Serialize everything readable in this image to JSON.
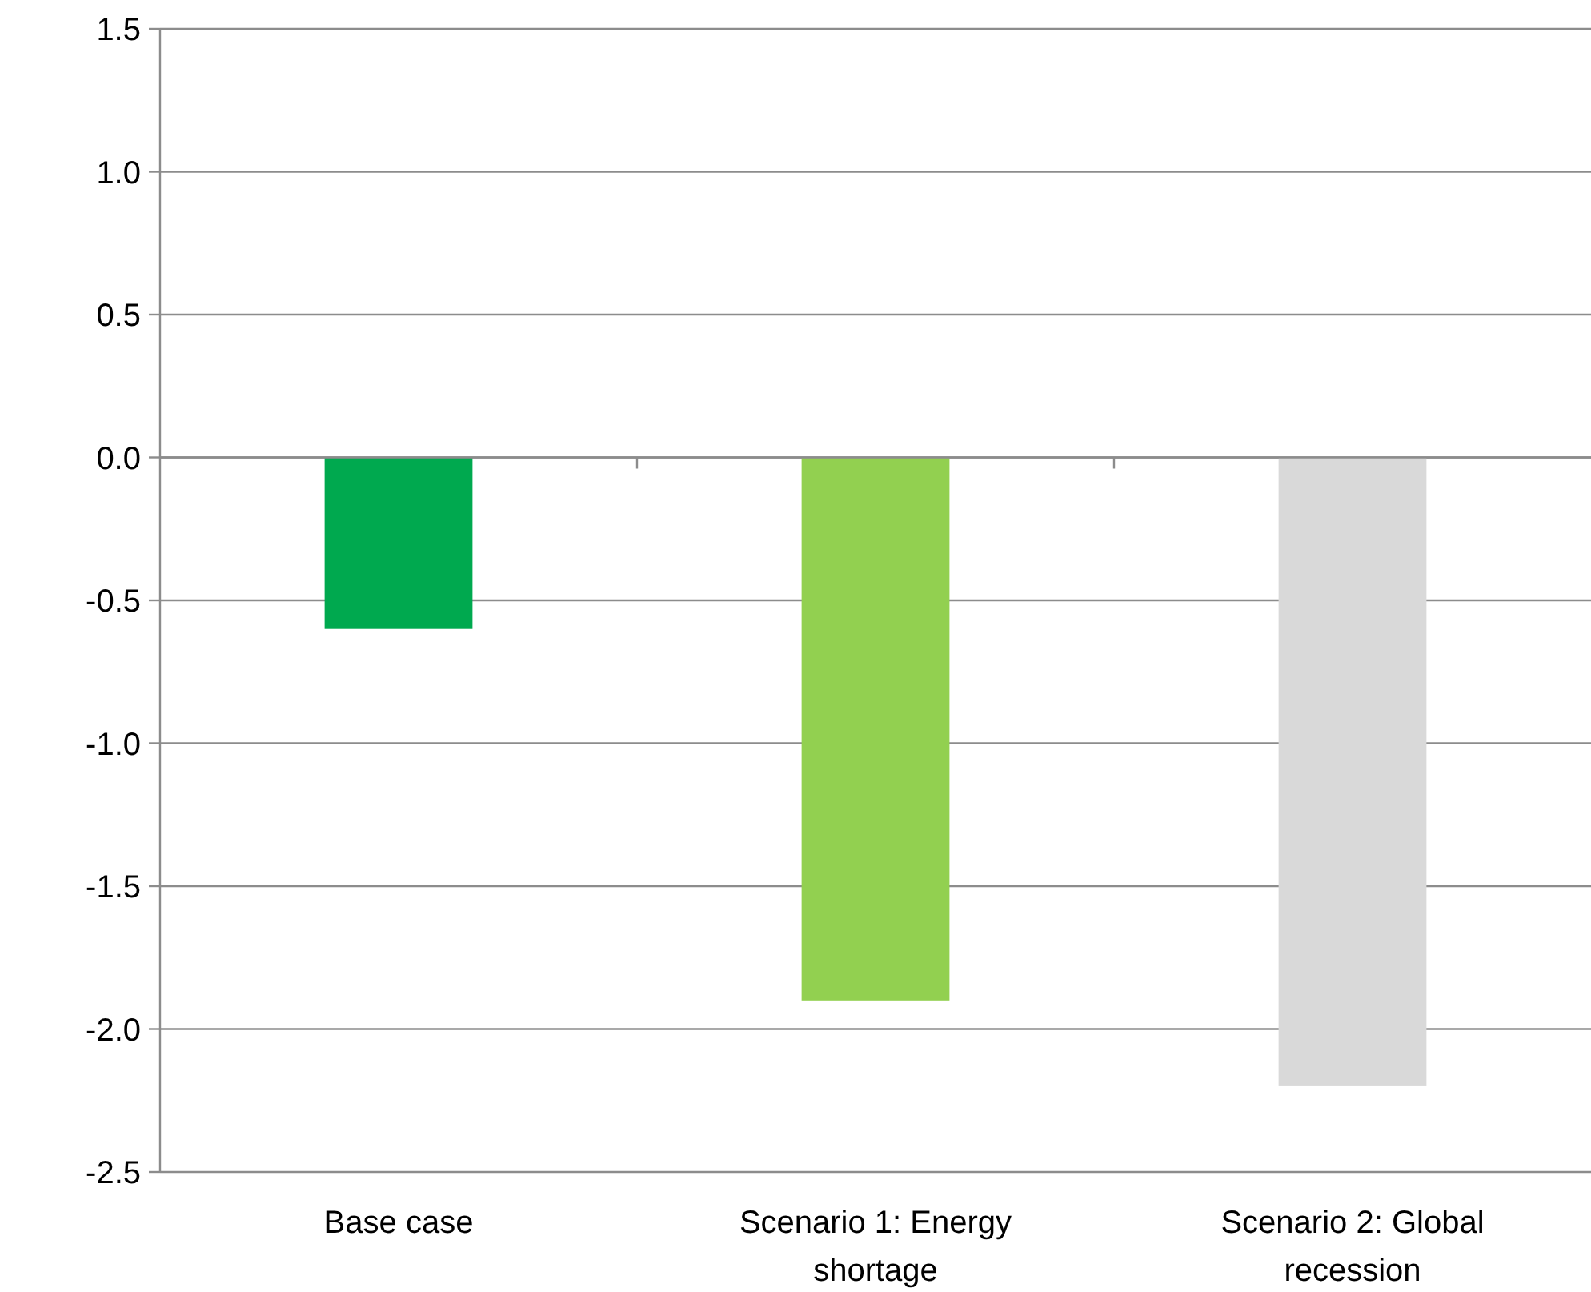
{
  "chart_data": {
    "type": "bar",
    "categories": [
      "Base case",
      "Scenario 1: Energy shortage",
      "Scenario 2: Global recession"
    ],
    "values": [
      -0.6,
      -1.9,
      -2.2
    ],
    "colors": [
      "#00a94f",
      "#92d050",
      "#d9d9d9"
    ],
    "ylim": [
      -2.5,
      1.5
    ],
    "yticks": [
      {
        "value": 1.5,
        "label": "1.5"
      },
      {
        "value": 1.0,
        "label": "1.0"
      },
      {
        "value": 0.5,
        "label": "0.5"
      },
      {
        "value": 0,
        "label": "0.0"
      },
      {
        "value": -0.5,
        "label": "-0.5"
      },
      {
        "value": -1.0,
        "label": "-1.0"
      },
      {
        "value": -1.5,
        "label": "-1.5"
      },
      {
        "value": -2.0,
        "label": "-2.0"
      },
      {
        "value": -2.5,
        "label": "-2.5"
      }
    ],
    "grid": "y"
  }
}
